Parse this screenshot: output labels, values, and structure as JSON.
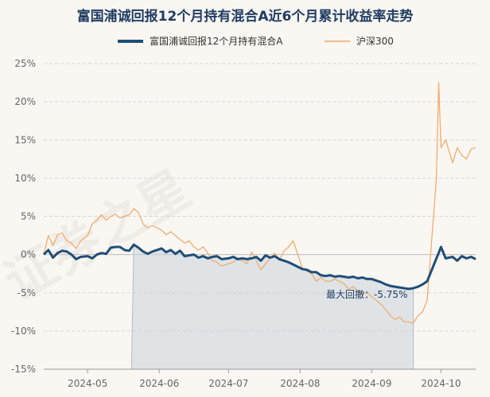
{
  "chart_data": {
    "type": "line",
    "title": "富国浦诚回报12个月持有混合A近6个月累计收益率走势",
    "ylim": [
      -15,
      25
    ],
    "yticks": [
      "25%",
      "20%",
      "15%",
      "10%",
      "5%",
      "0%",
      "-5%",
      "-10%",
      "-15%"
    ],
    "ytick_values": [
      25,
      20,
      15,
      10,
      5,
      0,
      -5,
      -10,
      -15
    ],
    "x_range": [
      "2024-04-12",
      "2024-10-16"
    ],
    "xticks": [
      {
        "label": "2024-05",
        "date": "2024-05-01"
      },
      {
        "label": "2024-06",
        "date": "2024-06-01"
      },
      {
        "label": "2024-07",
        "date": "2024-07-01"
      },
      {
        "label": "2024-08",
        "date": "2024-08-01"
      },
      {
        "label": "2024-09",
        "date": "2024-09-01"
      },
      {
        "label": "2024-10",
        "date": "2024-10-01"
      }
    ],
    "legend_position": "top",
    "grid": true,
    "drawdown_period": [
      "2024-05-20",
      "2024-09-19"
    ],
    "annotation": "最大回撤：-5.75%",
    "series": [
      {
        "name": "富国浦诚回报12个月持有混合A",
        "color": "#1f4e79",
        "points": [
          [
            "2024-04-12",
            0.0
          ],
          [
            "2024-04-14",
            0.6
          ],
          [
            "2024-04-16",
            -0.4
          ],
          [
            "2024-04-18",
            0.2
          ],
          [
            "2024-04-20",
            0.5
          ],
          [
            "2024-04-22",
            0.4
          ],
          [
            "2024-04-24",
            0.0
          ],
          [
            "2024-04-26",
            -0.6
          ],
          [
            "2024-04-28",
            -0.3
          ],
          [
            "2024-05-01",
            -0.2
          ],
          [
            "2024-05-03",
            -0.5
          ],
          [
            "2024-05-05",
            0.0
          ],
          [
            "2024-05-07",
            0.2
          ],
          [
            "2024-05-09",
            0.1
          ],
          [
            "2024-05-11",
            0.9
          ],
          [
            "2024-05-13",
            1.0
          ],
          [
            "2024-05-15",
            1.0
          ],
          [
            "2024-05-17",
            0.6
          ],
          [
            "2024-05-19",
            0.5
          ],
          [
            "2024-05-21",
            1.3
          ],
          [
            "2024-05-23",
            0.9
          ],
          [
            "2024-05-25",
            0.4
          ],
          [
            "2024-05-27",
            0.1
          ],
          [
            "2024-05-29",
            0.4
          ],
          [
            "2024-05-31",
            0.6
          ],
          [
            "2024-06-02",
            0.8
          ],
          [
            "2024-06-04",
            0.3
          ],
          [
            "2024-06-06",
            0.6
          ],
          [
            "2024-06-08",
            0.1
          ],
          [
            "2024-06-10",
            0.5
          ],
          [
            "2024-06-12",
            -0.2
          ],
          [
            "2024-06-14",
            -0.1
          ],
          [
            "2024-06-16",
            0.0
          ],
          [
            "2024-06-18",
            -0.4
          ],
          [
            "2024-06-20",
            -0.2
          ],
          [
            "2024-06-22",
            -0.5
          ],
          [
            "2024-06-24",
            -0.3
          ],
          [
            "2024-06-26",
            -0.2
          ],
          [
            "2024-06-28",
            -0.6
          ],
          [
            "2024-07-01",
            -0.5
          ],
          [
            "2024-07-03",
            -0.3
          ],
          [
            "2024-07-05",
            -0.6
          ],
          [
            "2024-07-07",
            -0.5
          ],
          [
            "2024-07-09",
            -0.6
          ],
          [
            "2024-07-11",
            -0.5
          ],
          [
            "2024-07-13",
            -0.3
          ],
          [
            "2024-07-15",
            -0.8
          ],
          [
            "2024-07-17",
            -0.1
          ],
          [
            "2024-07-19",
            -0.4
          ],
          [
            "2024-07-21",
            -0.2
          ],
          [
            "2024-07-23",
            -0.6
          ],
          [
            "2024-07-25",
            -0.8
          ],
          [
            "2024-07-27",
            -1.0
          ],
          [
            "2024-07-29",
            -1.3
          ],
          [
            "2024-07-31",
            -1.6
          ],
          [
            "2024-08-02",
            -1.9
          ],
          [
            "2024-08-04",
            -2.0
          ],
          [
            "2024-08-06",
            -2.3
          ],
          [
            "2024-08-08",
            -2.3
          ],
          [
            "2024-08-10",
            -2.7
          ],
          [
            "2024-08-12",
            -2.8
          ],
          [
            "2024-08-14",
            -2.7
          ],
          [
            "2024-08-16",
            -2.9
          ],
          [
            "2024-08-18",
            -2.8
          ],
          [
            "2024-08-20",
            -2.9
          ],
          [
            "2024-08-22",
            -3.0
          ],
          [
            "2024-08-24",
            -2.9
          ],
          [
            "2024-08-26",
            -3.1
          ],
          [
            "2024-08-28",
            -3.0
          ],
          [
            "2024-08-30",
            -3.2
          ],
          [
            "2024-09-01",
            -3.2
          ],
          [
            "2024-09-03",
            -3.4
          ],
          [
            "2024-09-05",
            -3.6
          ],
          [
            "2024-09-07",
            -3.9
          ],
          [
            "2024-09-09",
            -4.1
          ],
          [
            "2024-09-11",
            -4.2
          ],
          [
            "2024-09-13",
            -4.3
          ],
          [
            "2024-09-15",
            -4.4
          ],
          [
            "2024-09-17",
            -4.5
          ],
          [
            "2024-09-19",
            -4.4
          ],
          [
            "2024-09-21",
            -4.2
          ],
          [
            "2024-09-23",
            -3.9
          ],
          [
            "2024-09-25",
            -3.5
          ],
          [
            "2024-09-27",
            -2.0
          ],
          [
            "2024-09-29",
            -0.5
          ],
          [
            "2024-09-30",
            0.2
          ],
          [
            "2024-10-01",
            1.0
          ],
          [
            "2024-10-03",
            -0.5
          ],
          [
            "2024-10-06",
            -0.3
          ],
          [
            "2024-10-08",
            -0.8
          ],
          [
            "2024-10-10",
            -0.2
          ],
          [
            "2024-10-12",
            -0.5
          ],
          [
            "2024-10-14",
            -0.3
          ],
          [
            "2024-10-16",
            -0.6
          ]
        ]
      },
      {
        "name": "沪深300",
        "color": "#f0a868",
        "points": [
          [
            "2024-04-12",
            0.0
          ],
          [
            "2024-04-14",
            2.5
          ],
          [
            "2024-04-16",
            1.2
          ],
          [
            "2024-04-18",
            2.6
          ],
          [
            "2024-04-20",
            2.8
          ],
          [
            "2024-04-22",
            1.8
          ],
          [
            "2024-04-24",
            1.5
          ],
          [
            "2024-04-26",
            0.8
          ],
          [
            "2024-04-28",
            1.8
          ],
          [
            "2024-05-01",
            2.5
          ],
          [
            "2024-05-03",
            4.0
          ],
          [
            "2024-05-05",
            4.5
          ],
          [
            "2024-05-07",
            5.2
          ],
          [
            "2024-05-09",
            4.5
          ],
          [
            "2024-05-11",
            5.0
          ],
          [
            "2024-05-13",
            5.3
          ],
          [
            "2024-05-15",
            4.8
          ],
          [
            "2024-05-17",
            5.0
          ],
          [
            "2024-05-19",
            5.2
          ],
          [
            "2024-05-21",
            6.0
          ],
          [
            "2024-05-23",
            5.5
          ],
          [
            "2024-05-25",
            4.0
          ],
          [
            "2024-05-27",
            3.5
          ],
          [
            "2024-05-29",
            3.8
          ],
          [
            "2024-05-31",
            3.5
          ],
          [
            "2024-06-02",
            3.2
          ],
          [
            "2024-06-04",
            2.6
          ],
          [
            "2024-06-06",
            3.0
          ],
          [
            "2024-06-08",
            2.5
          ],
          [
            "2024-06-10",
            2.0
          ],
          [
            "2024-06-12",
            1.5
          ],
          [
            "2024-06-14",
            1.8
          ],
          [
            "2024-06-16",
            1.0
          ],
          [
            "2024-06-18",
            0.6
          ],
          [
            "2024-06-20",
            1.0
          ],
          [
            "2024-06-22",
            0.2
          ],
          [
            "2024-06-24",
            -0.8
          ],
          [
            "2024-06-26",
            -1.0
          ],
          [
            "2024-06-28",
            -1.5
          ],
          [
            "2024-07-01",
            -1.2
          ],
          [
            "2024-07-03",
            -1.0
          ],
          [
            "2024-07-05",
            -0.5
          ],
          [
            "2024-07-07",
            -0.8
          ],
          [
            "2024-07-09",
            -1.2
          ],
          [
            "2024-07-11",
            0.3
          ],
          [
            "2024-07-13",
            -0.8
          ],
          [
            "2024-07-15",
            -2.0
          ],
          [
            "2024-07-17",
            -1.2
          ],
          [
            "2024-07-19",
            -0.5
          ],
          [
            "2024-07-21",
            0.2
          ],
          [
            "2024-07-23",
            -0.8
          ],
          [
            "2024-07-25",
            0.5
          ],
          [
            "2024-07-27",
            1.0
          ],
          [
            "2024-07-29",
            1.8
          ],
          [
            "2024-07-31",
            0.0
          ],
          [
            "2024-08-02",
            -1.8
          ],
          [
            "2024-08-04",
            -2.2
          ],
          [
            "2024-08-06",
            -2.5
          ],
          [
            "2024-08-08",
            -3.5
          ],
          [
            "2024-08-10",
            -3.0
          ],
          [
            "2024-08-12",
            -3.5
          ],
          [
            "2024-08-14",
            -3.5
          ],
          [
            "2024-08-16",
            -3.2
          ],
          [
            "2024-08-18",
            -3.5
          ],
          [
            "2024-08-20",
            -3.8
          ],
          [
            "2024-08-22",
            -4.5
          ],
          [
            "2024-08-24",
            -4.2
          ],
          [
            "2024-08-26",
            -4.8
          ],
          [
            "2024-08-28",
            -5.2
          ],
          [
            "2024-08-30",
            -5.0
          ],
          [
            "2024-09-01",
            -5.5
          ],
          [
            "2024-09-03",
            -6.0
          ],
          [
            "2024-09-05",
            -6.5
          ],
          [
            "2024-09-07",
            -7.2
          ],
          [
            "2024-09-09",
            -8.0
          ],
          [
            "2024-09-11",
            -8.5
          ],
          [
            "2024-09-13",
            -8.2
          ],
          [
            "2024-09-15",
            -8.8
          ],
          [
            "2024-09-17",
            -8.8
          ],
          [
            "2024-09-19",
            -9.0
          ],
          [
            "2024-09-21",
            -8.0
          ],
          [
            "2024-09-23",
            -7.5
          ],
          [
            "2024-09-25",
            -6.0
          ],
          [
            "2024-09-27",
            2.0
          ],
          [
            "2024-09-29",
            10.0
          ],
          [
            "2024-09-30",
            22.5
          ],
          [
            "2024-10-01",
            14.0
          ],
          [
            "2024-10-03",
            15.0
          ],
          [
            "2024-10-06",
            12.0
          ],
          [
            "2024-10-08",
            14.0
          ],
          [
            "2024-10-10",
            13.0
          ],
          [
            "2024-10-12",
            12.5
          ],
          [
            "2024-10-14",
            13.8
          ],
          [
            "2024-10-16",
            14.0
          ]
        ]
      }
    ]
  },
  "watermark_text": "证券之星"
}
